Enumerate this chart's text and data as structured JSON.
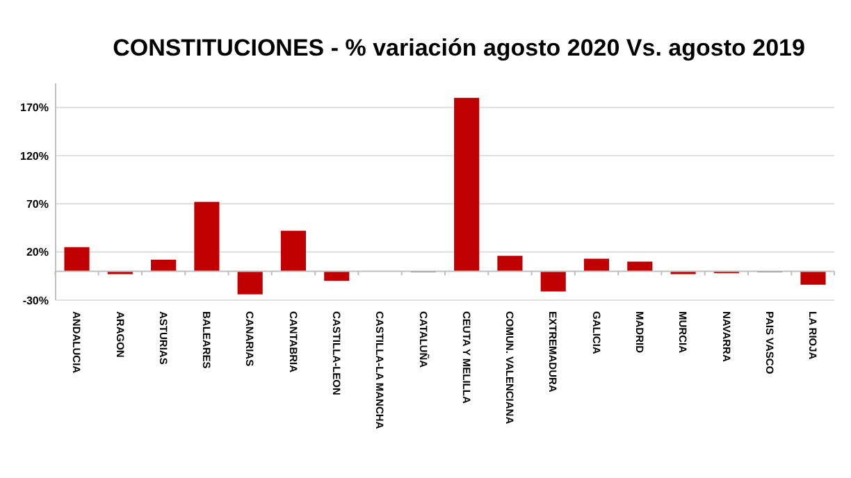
{
  "chart_data": {
    "type": "bar",
    "title": "CONSTITUCIONES - % variación agosto 2020 Vs. agosto 2019",
    "categories": [
      "ANDALUCIA",
      "ARAGON",
      "ASTURIAS",
      "BALEARES",
      "CANARIAS",
      "CANTABRIA",
      "CASTILLA-LEON",
      "CASTILLA-LA MANCHA",
      "CATALUÑA",
      "CEUTA Y MELILLA",
      "COMUN. VALENCIANA",
      "EXTREMADURA",
      "GALICIA",
      "MADRID",
      "MURCIA",
      "NAVARRA",
      "PAIS VASCO",
      "LA RIOJA"
    ],
    "values": [
      25,
      -3,
      12,
      72,
      -24,
      42,
      -10,
      0,
      -1,
      180,
      16,
      -21,
      13,
      10,
      -3,
      -2,
      -1,
      -14
    ],
    "color": "#c00000",
    "ylim": [
      -30,
      195
    ],
    "yticks": [
      {
        "value": -30,
        "label": "-30%"
      },
      {
        "value": 20,
        "label": "20%"
      },
      {
        "value": 70,
        "label": "70%"
      },
      {
        "value": 120,
        "label": "120%"
      },
      {
        "value": 170,
        "label": "170%"
      }
    ],
    "grid": "y"
  }
}
